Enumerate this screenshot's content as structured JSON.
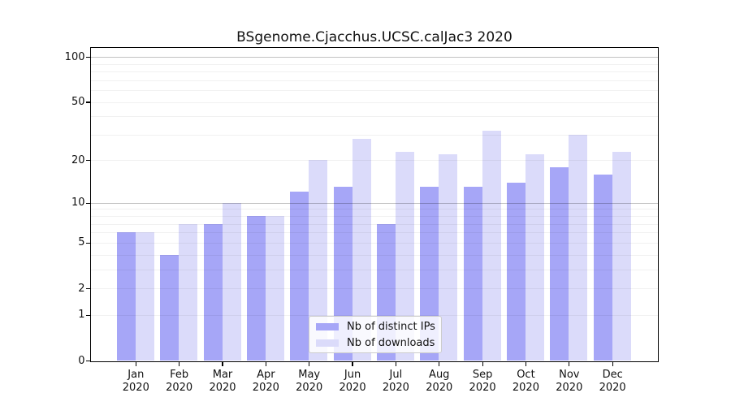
{
  "chart_data": {
    "type": "bar",
    "title": "BSgenome.Cjacchus.UCSC.calJac3 2020",
    "categories": [
      "Jan",
      "Feb",
      "Mar",
      "Apr",
      "May",
      "Jun",
      "Jul",
      "Aug",
      "Sep",
      "Oct",
      "Nov",
      "Dec"
    ],
    "x_year": "2020",
    "series": [
      {
        "name": "Nb of distinct IPs",
        "color": "#a6a6f7",
        "values": [
          6,
          4,
          7,
          8,
          12,
          13,
          7,
          13,
          13,
          14,
          18,
          16
        ]
      },
      {
        "name": "Nb of downloads",
        "color": "#dbdbfa",
        "values": [
          6,
          7,
          10,
          8,
          20,
          28,
          23,
          22,
          32,
          22,
          30,
          23
        ]
      }
    ],
    "y_scale": "log1p",
    "y_axis": {
      "tick_labels": [
        100,
        50,
        20,
        10,
        5,
        2,
        1,
        0
      ],
      "major_gridlines": [
        10,
        100
      ],
      "minor_gridlines": [
        1,
        2,
        3,
        4,
        5,
        6,
        7,
        8,
        9,
        20,
        30,
        40,
        50,
        60,
        70,
        80,
        90
      ]
    },
    "legend": {
      "position": "bottom-center"
    },
    "grid": "on",
    "frame": "on"
  }
}
